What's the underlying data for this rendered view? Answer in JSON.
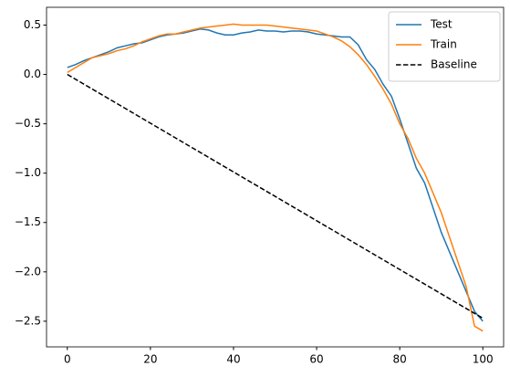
{
  "chart_data": {
    "type": "line",
    "x": [
      0,
      2,
      4,
      6,
      8,
      10,
      12,
      14,
      16,
      18,
      20,
      22,
      24,
      26,
      28,
      30,
      32,
      34,
      36,
      38,
      40,
      42,
      44,
      46,
      48,
      50,
      52,
      54,
      56,
      58,
      60,
      62,
      64,
      66,
      68,
      70,
      72,
      74,
      76,
      78,
      80,
      82,
      84,
      86,
      88,
      90,
      92,
      94,
      96,
      98,
      100
    ],
    "series": [
      {
        "name": "Test",
        "color": "#1f77b4",
        "dash": "solid",
        "values": [
          0.07,
          0.1,
          0.14,
          0.17,
          0.2,
          0.23,
          0.27,
          0.29,
          0.31,
          0.32,
          0.35,
          0.38,
          0.4,
          0.41,
          0.42,
          0.44,
          0.46,
          0.45,
          0.42,
          0.4,
          0.4,
          0.42,
          0.43,
          0.45,
          0.44,
          0.44,
          0.43,
          0.44,
          0.44,
          0.43,
          0.41,
          0.4,
          0.39,
          0.38,
          0.38,
          0.3,
          0.15,
          0.05,
          -0.1,
          -0.22,
          -0.45,
          -0.7,
          -0.95,
          -1.1,
          -1.35,
          -1.6,
          -1.8,
          -2.0,
          -2.2,
          -2.4,
          -2.5
        ]
      },
      {
        "name": "Train",
        "color": "#ff7f0e",
        "dash": "solid",
        "values": [
          0.02,
          0.07,
          0.12,
          0.17,
          0.19,
          0.21,
          0.24,
          0.26,
          0.29,
          0.33,
          0.36,
          0.39,
          0.41,
          0.41,
          0.43,
          0.45,
          0.47,
          0.48,
          0.49,
          0.5,
          0.51,
          0.5,
          0.5,
          0.5,
          0.5,
          0.49,
          0.48,
          0.47,
          0.46,
          0.45,
          0.44,
          0.41,
          0.38,
          0.34,
          0.28,
          0.2,
          0.1,
          -0.02,
          -0.15,
          -0.3,
          -0.5,
          -0.65,
          -0.85,
          -1.0,
          -1.2,
          -1.4,
          -1.65,
          -1.9,
          -2.15,
          -2.55,
          -2.6
        ]
      },
      {
        "name": "Baseline",
        "color": "#000000",
        "dash": "dashed",
        "x": [
          0,
          100
        ],
        "values": [
          0,
          -2.47
        ]
      }
    ],
    "xlim": [
      -5,
      105
    ],
    "xticks": [
      0,
      20,
      40,
      60,
      80,
      100
    ],
    "ylim": [
      -2.76,
      0.68
    ],
    "yticks": [
      {
        "value": 0.5,
        "label": "0.5"
      },
      {
        "value": 0,
        "label": "0.0"
      },
      {
        "value": -0.5,
        "label": "−0.5"
      },
      {
        "value": -1,
        "label": "−1.0"
      },
      {
        "value": -1.5,
        "label": "−1.5"
      },
      {
        "value": -2,
        "label": "−2.0"
      },
      {
        "value": -2.5,
        "label": "−2.5"
      }
    ],
    "legend": "upper right",
    "grid": false
  }
}
